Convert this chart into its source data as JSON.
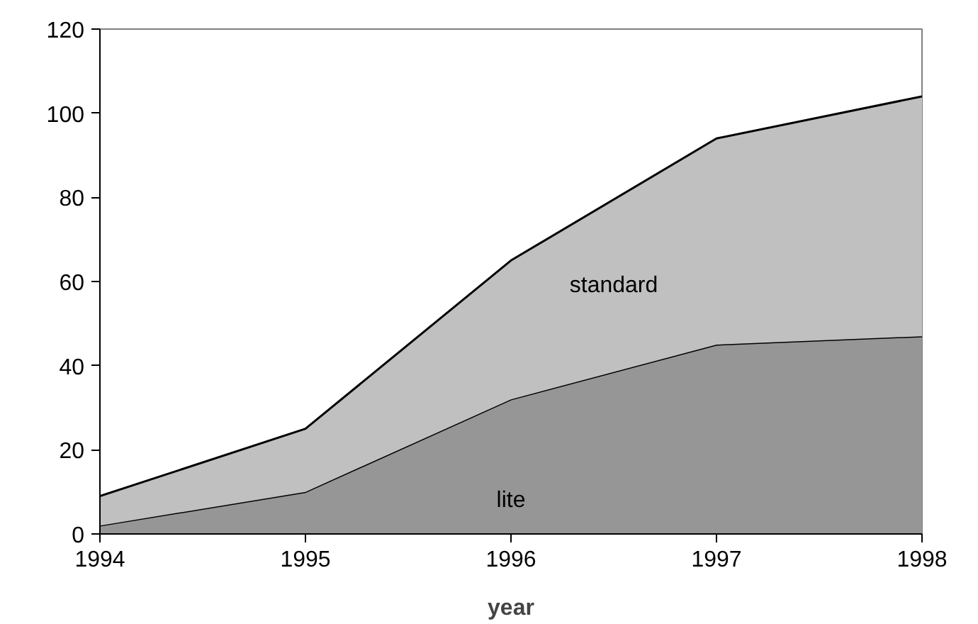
{
  "chart_data": {
    "type": "area",
    "stacked": true,
    "xlabel": "year",
    "x": [
      1994,
      1995,
      1996,
      1997,
      1998
    ],
    "series": [
      {
        "name": "lite",
        "color": "#969696",
        "values": [
          2,
          10,
          32,
          45,
          47
        ]
      },
      {
        "name": "standard",
        "color": "#c0c0c0",
        "values": [
          7,
          15,
          33,
          49,
          57
        ]
      }
    ],
    "xlim": [
      1994,
      1998
    ],
    "xticks": [
      1994,
      1995,
      1996,
      1997,
      1998
    ],
    "ylim": [
      0,
      120
    ],
    "yticks": [
      0,
      20,
      40,
      60,
      80,
      100,
      120
    ],
    "grid": false,
    "legend": false
  }
}
